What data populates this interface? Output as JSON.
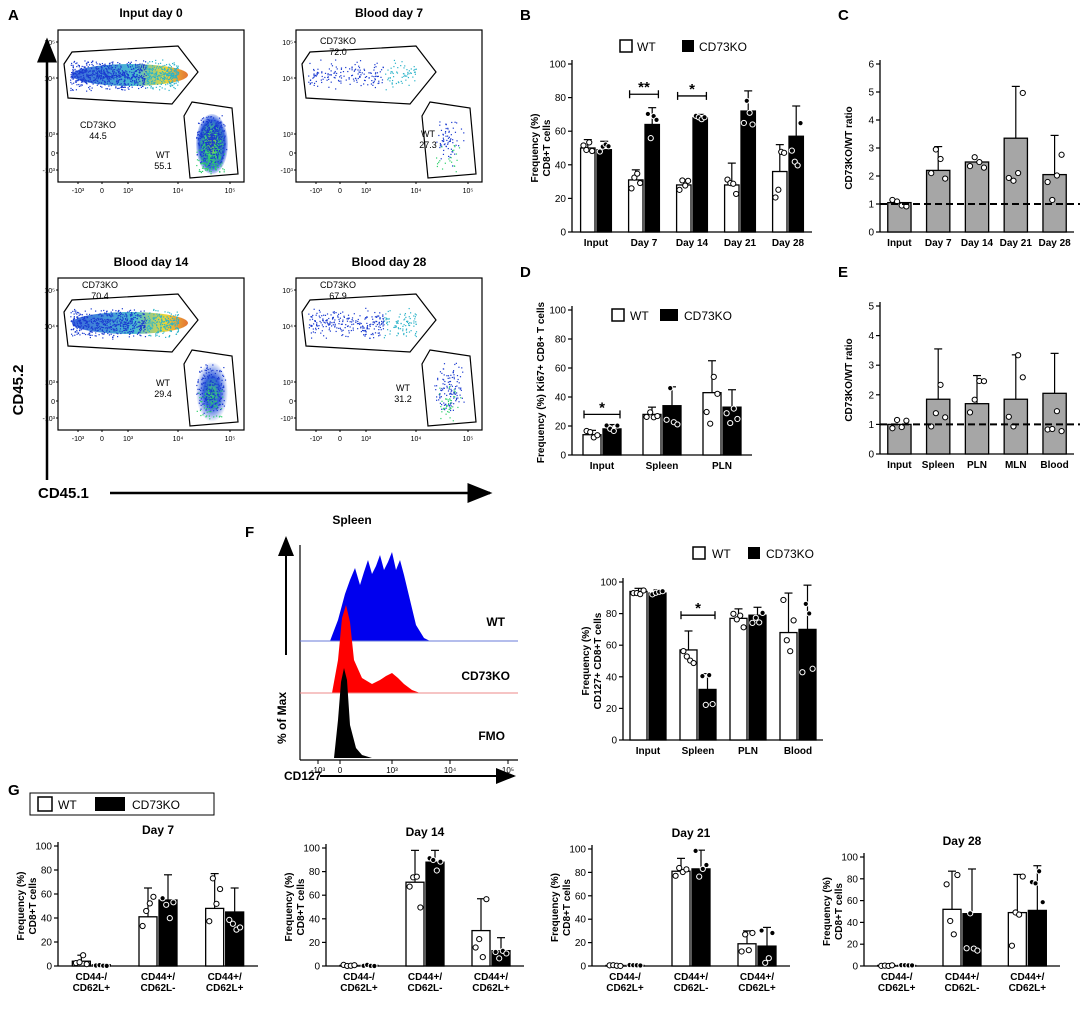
{
  "chart_data": [
    {
      "panel": "A",
      "type": "scatter",
      "title": "Flow cytometry: CD45.2 vs CD45.1",
      "xlabel": "CD45.1",
      "ylabel": "CD45.2",
      "x_ticks": [
        "-10³",
        "0",
        "10³",
        "10⁴",
        "10⁵"
      ],
      "y_ticks": [
        "10⁵",
        "10⁴",
        "10³",
        "0",
        "-10³"
      ],
      "plots": [
        {
          "title": "Input day 0",
          "gates": [
            {
              "name": "CD73KO",
              "value": "44.5"
            },
            {
              "name": "WT",
              "value": "55.1"
            }
          ]
        },
        {
          "title": "Blood day 7",
          "gates": [
            {
              "name": "CD73KO",
              "value": "72.0"
            },
            {
              "name": "WT",
              "value": "27.3"
            }
          ]
        },
        {
          "title": "Blood day 14",
          "gates": [
            {
              "name": "CD73KO",
              "value": "70.4"
            },
            {
              "name": "WT",
              "value": "29.4"
            }
          ]
        },
        {
          "title": "Blood day 28",
          "gates": [
            {
              "name": "CD73KO",
              "value": "67.9"
            },
            {
              "name": "WT",
              "value": "31.2"
            }
          ]
        }
      ]
    },
    {
      "panel": "B",
      "type": "bar",
      "categories": [
        "Input",
        "Day 7",
        "Day 14",
        "Day 21",
        "Day 28"
      ],
      "series": [
        {
          "name": "WT",
          "values": [
            50,
            31,
            28,
            28,
            36
          ],
          "errors": [
            5,
            6,
            3,
            13,
            16
          ]
        },
        {
          "name": "CD73KO",
          "values": [
            49,
            64,
            68,
            72,
            57
          ],
          "errors": [
            5,
            10,
            2,
            12,
            18
          ]
        }
      ],
      "ylabel_lines": [
        "Frequency (%)",
        "CD8+T cells"
      ],
      "ylim": [
        0,
        100
      ],
      "y_ticks": [
        0,
        20,
        40,
        60,
        80,
        100
      ],
      "significance": [
        {
          "category": "Day 7",
          "label": "**"
        },
        {
          "category": "Day 14",
          "label": "*"
        }
      ]
    },
    {
      "panel": "C",
      "type": "bar",
      "categories": [
        "Input",
        "Day 7",
        "Day 14",
        "Day 21",
        "Day 28"
      ],
      "series": [
        {
          "name": "CD73KO/WT ratio",
          "values": [
            1.05,
            2.2,
            2.5,
            3.35,
            2.05
          ],
          "errors": [
            0.15,
            0.85,
            0.35,
            1.85,
            1.4
          ]
        }
      ],
      "ylabel": "CD73KO/WT ratio",
      "ylim": [
        0,
        6
      ],
      "y_ticks": [
        0,
        1,
        2,
        3,
        4,
        5,
        6
      ],
      "reference_line": 1
    },
    {
      "panel": "D",
      "type": "bar",
      "categories": [
        "Input",
        "Spleen",
        "PLN"
      ],
      "series": [
        {
          "name": "WT",
          "values": [
            14,
            28,
            43
          ],
          "errors": [
            3,
            5,
            22
          ]
        },
        {
          "name": "CD73KO",
          "values": [
            18,
            34,
            33
          ],
          "errors": [
            3,
            13,
            12
          ]
        }
      ],
      "ylabel": "Frequency (%) Ki67+ CD8+ T cells",
      "ylim": [
        0,
        100
      ],
      "y_ticks": [
        0,
        20,
        40,
        60,
        80,
        100
      ],
      "significance": [
        {
          "category": "Input",
          "label": "*"
        }
      ]
    },
    {
      "panel": "E",
      "type": "bar",
      "categories": [
        "Input",
        "Spleen",
        "PLN",
        "MLN",
        "Blood"
      ],
      "series": [
        {
          "name": "CD73KO/WT ratio",
          "values": [
            1.0,
            1.85,
            1.7,
            1.85,
            2.05
          ],
          "errors": [
            0.15,
            1.7,
            0.95,
            1.5,
            1.35
          ]
        }
      ],
      "ylabel": "CD73KO/WT ratio",
      "ylim": [
        0,
        5
      ],
      "y_ticks": [
        0,
        1,
        2,
        3,
        4,
        5
      ],
      "reference_line": 1
    },
    {
      "panel": "F",
      "type": "area",
      "title": "Spleen",
      "xlabel": "CD127",
      "ylabel": "% of Max",
      "x_ticks": [
        "-10³",
        "0",
        "10³",
        "10⁴",
        "10⁵"
      ],
      "series": [
        {
          "name": "WT",
          "color": "#0000ee"
        },
        {
          "name": "CD73KO",
          "color": "#ff0000"
        },
        {
          "name": "FMO",
          "color": "#000000"
        }
      ]
    },
    {
      "panel": "F-bar",
      "type": "bar",
      "categories": [
        "Input",
        "Spleen",
        "PLN",
        "Blood"
      ],
      "series": [
        {
          "name": "WT",
          "values": [
            94,
            57,
            77,
            68
          ],
          "errors": [
            2,
            12,
            6,
            25
          ]
        },
        {
          "name": "CD73KO",
          "values": [
            93,
            32,
            79,
            70
          ],
          "errors": [
            2,
            10,
            5,
            28
          ]
        }
      ],
      "ylabel_lines": [
        "Frequency (%)",
        "CD127+ CD8+T cells"
      ],
      "ylim": [
        0,
        100
      ],
      "y_ticks": [
        0,
        20,
        40,
        60,
        80,
        100
      ],
      "significance": [
        {
          "category": "Spleen",
          "label": "*"
        }
      ]
    },
    {
      "panel": "G",
      "type": "bar",
      "categories": [
        "CD44-/CD62L+",
        "CD44+/CD62L-",
        "CD44+/CD62L+"
      ],
      "ylabel_lines": [
        "Frequency (%)",
        "CD8+T cells"
      ],
      "ylim": [
        0,
        100
      ],
      "y_ticks": [
        0,
        20,
        40,
        60,
        80,
        100
      ],
      "plots": [
        {
          "title": "Day 7",
          "series": [
            {
              "name": "WT",
              "values": [
                4,
                41,
                48
              ],
              "errors": [
                5,
                24,
                29
              ]
            },
            {
              "name": "CD73KO",
              "values": [
                1,
                55,
                45
              ],
              "errors": [
                1,
                21,
                20
              ]
            }
          ]
        },
        {
          "title": "Day 14",
          "series": [
            {
              "name": "WT",
              "values": [
                0.5,
                71,
                30
              ],
              "errors": [
                0.5,
                27,
                27
              ]
            },
            {
              "name": "CD73KO",
              "values": [
                0.5,
                88,
                13
              ],
              "errors": [
                0.5,
                10,
                11
              ]
            }
          ]
        },
        {
          "title": "Day 21",
          "series": [
            {
              "name": "WT",
              "values": [
                0.5,
                81,
                19
              ],
              "errors": [
                0.5,
                11,
                11
              ]
            },
            {
              "name": "CD73KO",
              "values": [
                0.5,
                83,
                17
              ],
              "errors": [
                0.5,
                16,
                16
              ]
            }
          ]
        },
        {
          "title": "Day 28",
          "series": [
            {
              "name": "WT",
              "values": [
                0.5,
                52,
                49
              ],
              "errors": [
                0.5,
                35,
                35
              ]
            },
            {
              "name": "CD73KO",
              "values": [
                0.5,
                48,
                51
              ],
              "errors": [
                0.5,
                41,
                41
              ]
            }
          ]
        }
      ]
    }
  ],
  "legend": {
    "wt": "WT",
    "ko": "CD73KO"
  },
  "panel_letters": {
    "a": "A",
    "b": "B",
    "c": "C",
    "d": "D",
    "e": "E",
    "f": "F",
    "g": "G"
  },
  "colors": {
    "wt_fill": "#ffffff",
    "ko_fill": "#000000",
    "ratio_fill": "#a6a6a6",
    "wt_hist": "#0000ee",
    "ko_hist": "#ff0000",
    "fmo_hist": "#000000"
  }
}
